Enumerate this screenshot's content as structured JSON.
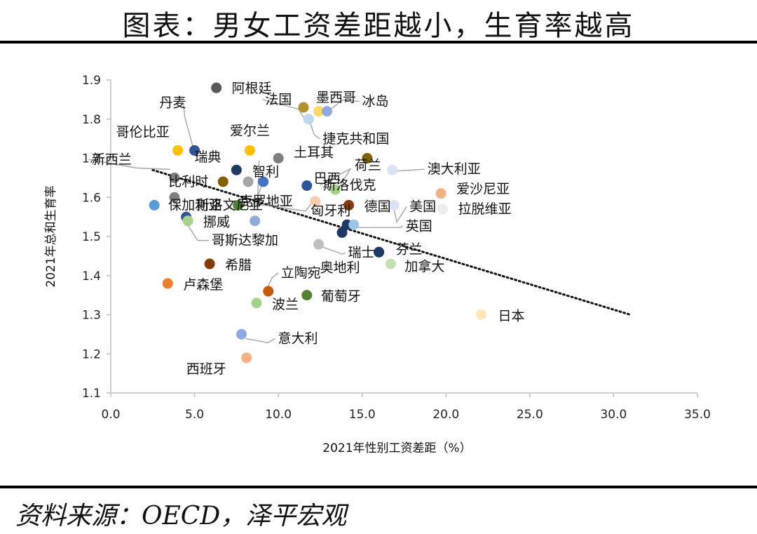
{
  "header": {
    "title": "图表：男女工资差距越小，生育率越高"
  },
  "footer": {
    "source": "资料来源：OECD，泽平宏观"
  },
  "chart_data": {
    "type": "scatter",
    "title": "",
    "xlabel": "2021年性别工资差距（%）",
    "ylabel": "2021年总和生育率",
    "xlim": [
      0,
      35
    ],
    "ylim": [
      1.1,
      1.9
    ],
    "xticks": [
      "0.0",
      "5.0",
      "10.0",
      "15.0",
      "20.0",
      "25.0",
      "30.0",
      "35.0"
    ],
    "yticks": [
      "1.1",
      "1.2",
      "1.3",
      "1.4",
      "1.5",
      "1.6",
      "1.7",
      "1.8",
      "1.9"
    ],
    "grid": false,
    "legend": "none",
    "trendline": {
      "style": "dotted",
      "x1": 2.5,
      "y1": 1.67,
      "x2": 31.0,
      "y2": 1.3
    },
    "points": [
      {
        "label": "阿根廷",
        "x": 6.3,
        "y": 1.88,
        "color": "#595959"
      },
      {
        "label": "墨西哥",
        "x": 11.5,
        "y": 1.83,
        "color": "#b8912f"
      },
      {
        "label": "",
        "x": 12.4,
        "y": 1.82,
        "color": "#ffd966"
      },
      {
        "label": "冰岛",
        "x": 12.9,
        "y": 1.82,
        "color": "#8ea9db"
      },
      {
        "label": "法国",
        "x": 11.8,
        "y": 1.8,
        "color": "#bdd7ee"
      },
      {
        "label": "捷克共和国",
        "x": 11.8,
        "y": 1.8,
        "color": "#bdd7ee"
      },
      {
        "label": "丹麦",
        "x": 5.0,
        "y": 1.72,
        "color": "#2f5597"
      },
      {
        "label": "哥伦比亚",
        "x": 4.0,
        "y": 1.72,
        "color": "#ffc000"
      },
      {
        "label": "爱尔兰",
        "x": 8.3,
        "y": 1.72,
        "color": "#ffc000"
      },
      {
        "label": "瑞典",
        "x": 7.5,
        "y": 1.67,
        "color": "#203864"
      },
      {
        "label": "土耳其",
        "x": 10.0,
        "y": 1.7,
        "color": "#7f7f7f"
      },
      {
        "label": "荷兰",
        "x": 15.3,
        "y": 1.7,
        "color": "#7f6000"
      },
      {
        "label": "澳大利亚",
        "x": 16.8,
        "y": 1.67,
        "color": "#dae3f3"
      },
      {
        "label": "新西兰",
        "x": 3.8,
        "y": 1.65,
        "color": "#7f7f7f"
      },
      {
        "label": "比利时",
        "x": 6.7,
        "y": 1.64,
        "color": "#806000"
      },
      {
        "label": "智利",
        "x": 8.2,
        "y": 1.64,
        "color": "#a6a6a6"
      },
      {
        "label": "",
        "x": 9.1,
        "y": 1.64,
        "color": "#4472c4"
      },
      {
        "label": "巴西",
        "x": 11.7,
        "y": 1.63,
        "color": "#2f5597"
      },
      {
        "label": "斯洛伐克",
        "x": 13.4,
        "y": 1.62,
        "color": "#a9d18e"
      },
      {
        "label": "爱沙尼亚",
        "x": 19.7,
        "y": 1.61,
        "color": "#f4b183"
      },
      {
        "label": "",
        "x": 3.8,
        "y": 1.6,
        "color": "#7f7f7f"
      },
      {
        "label": "保加利亚",
        "x": 2.6,
        "y": 1.58,
        "color": "#5b9bd5"
      },
      {
        "label": "斯洛文尼亚",
        "x": 7.6,
        "y": 1.58,
        "color": "#548235"
      },
      {
        "label": "克罗地亚",
        "x": 12.2,
        "y": 1.59,
        "color": "#f8cbad"
      },
      {
        "label": "德国",
        "x": 14.2,
        "y": 1.58,
        "color": "#843c0c"
      },
      {
        "label": "美国",
        "x": 16.9,
        "y": 1.58,
        "color": "#dae3f3"
      },
      {
        "label": "拉脱维亚",
        "x": 19.8,
        "y": 1.57,
        "color": "#ededed"
      },
      {
        "label": "",
        "x": 4.5,
        "y": 1.55,
        "color": "#2f5597"
      },
      {
        "label": "挪威",
        "x": 4.6,
        "y": 1.54,
        "color": "#a9d18e"
      },
      {
        "label": "",
        "x": 8.6,
        "y": 1.54,
        "color": "#8faadc"
      },
      {
        "label": "哥斯达黎加",
        "x": 4.6,
        "y": 1.54,
        "color": "#a9d18e"
      },
      {
        "label": "匈牙利",
        "x": 14.1,
        "y": 1.53,
        "color": "#203864"
      },
      {
        "label": "英国",
        "x": 14.5,
        "y": 1.53,
        "color": "#9dc3e6"
      },
      {
        "label": "",
        "x": 13.8,
        "y": 1.51,
        "color": "#203864"
      },
      {
        "label": "瑞士",
        "x": 12.4,
        "y": 1.48,
        "color": "#bfbfbf"
      },
      {
        "label": "芬兰",
        "x": 16.0,
        "y": 1.46,
        "color": "#1f3864"
      },
      {
        "label": "奥地利",
        "x": 16.0,
        "y": 1.46,
        "color": "#1f3864"
      },
      {
        "label": "加拿大",
        "x": 16.7,
        "y": 1.43,
        "color": "#c5e0b4"
      },
      {
        "label": "希腊",
        "x": 5.9,
        "y": 1.43,
        "color": "#843c0c"
      },
      {
        "label": "卢森堡",
        "x": 3.4,
        "y": 1.38,
        "color": "#ed7d31"
      },
      {
        "label": "立陶宛",
        "x": 9.4,
        "y": 1.36,
        "color": "#c55a11"
      },
      {
        "label": "葡萄牙",
        "x": 11.7,
        "y": 1.35,
        "color": "#548235"
      },
      {
        "label": "波兰",
        "x": 8.7,
        "y": 1.33,
        "color": "#a9d18e"
      },
      {
        "label": "日本",
        "x": 22.1,
        "y": 1.3,
        "color": "#ffe6b8"
      },
      {
        "label": "意大利",
        "x": 7.8,
        "y": 1.25,
        "color": "#8faadc"
      },
      {
        "label": "西班牙",
        "x": 8.1,
        "y": 1.19,
        "color": "#f4b183"
      }
    ]
  }
}
